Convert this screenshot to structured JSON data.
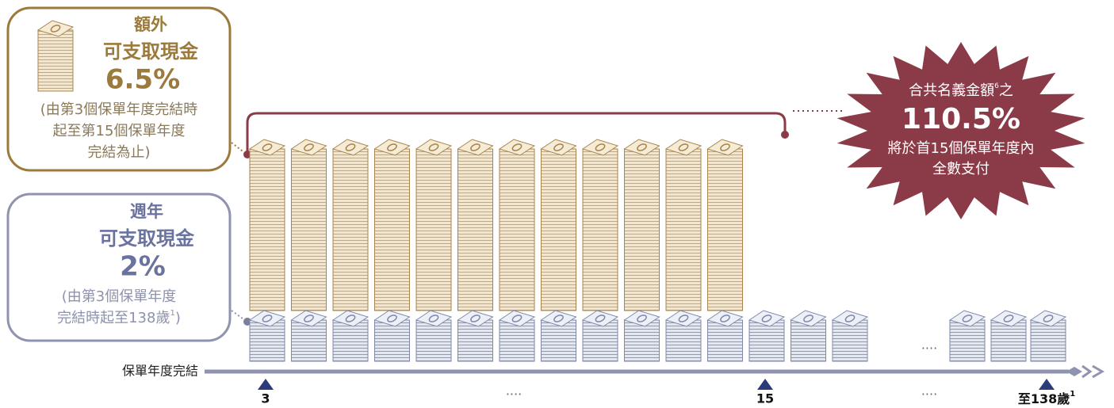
{
  "extra_box": {
    "title": "額外",
    "subtitle": "可支取現金",
    "rate": "6.5%",
    "note": [
      "(由第3個保單年度完結時",
      "起至第15個保單年度",
      "完結為止)"
    ]
  },
  "annual_box": {
    "title": "週年",
    "subtitle": "可支取現金",
    "rate": "2%",
    "note": [
      "(由第3個保單年度",
      "完結時起至138歲"
    ],
    "note_sup": "1",
    "note_end": ")"
  },
  "burst": {
    "line1": "合共名義金額",
    "line1_sup": "6",
    "line1_end": "之",
    "rate": "110.5%",
    "line2": "將於首15個保單年度內",
    "line3": "全數支付"
  },
  "timeline": {
    "label": "保單年度完結",
    "markers": [
      "3",
      "15",
      "至138歲"
    ],
    "end_sup": "1",
    "ellipses": [
      "....",
      "...."
    ]
  },
  "stack_ellipsis": "...."
}
